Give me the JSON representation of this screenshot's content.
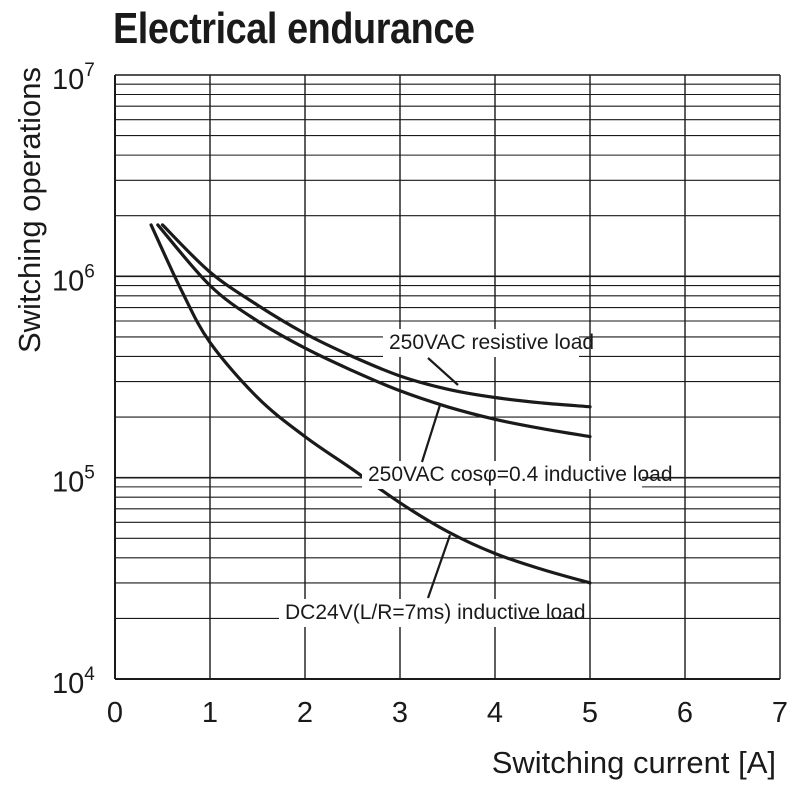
{
  "chart_data": {
    "type": "line",
    "title": "Electrical endurance",
    "xlabel": "Switching current [A]",
    "ylabel": "Switching operations",
    "xlim": [
      0,
      7
    ],
    "ylim": [
      10000,
      10000000
    ],
    "yscale": "log",
    "grid": true,
    "x_ticks": [
      "0",
      "1",
      "2",
      "3",
      "4",
      "5",
      "6",
      "7"
    ],
    "y_ticks": [
      {
        "base": "10",
        "exp": "4",
        "value": 10000
      },
      {
        "base": "10",
        "exp": "5",
        "value": 100000
      },
      {
        "base": "10",
        "exp": "6",
        "value": 1000000
      },
      {
        "base": "10",
        "exp": "7",
        "value": 10000000
      }
    ],
    "series": [
      {
        "name": "250VAC resistive load",
        "x": [
          0.5,
          1,
          1.5,
          2,
          2.5,
          3,
          3.5,
          4,
          4.5,
          5
        ],
        "y": [
          1800000,
          1050000,
          720000,
          520000,
          400000,
          320000,
          275000,
          250000,
          235000,
          225000
        ]
      },
      {
        "name": "250VAC cosφ=0.4 inductive load",
        "x": [
          0.45,
          1,
          1.5,
          2,
          2.5,
          3,
          3.5,
          4,
          4.5,
          5
        ],
        "y": [
          1800000,
          900000,
          600000,
          440000,
          340000,
          270000,
          225000,
          195000,
          175000,
          160000
        ]
      },
      {
        "name": "DC24V(L/R=7ms) inductive load",
        "x": [
          0.38,
          0.7,
          1,
          1.5,
          2,
          2.5,
          3,
          3.5,
          4,
          4.5,
          5
        ],
        "y": [
          1800000,
          850000,
          470000,
          250000,
          160000,
          110000,
          75000,
          54000,
          42000,
          35000,
          30000
        ]
      }
    ]
  }
}
